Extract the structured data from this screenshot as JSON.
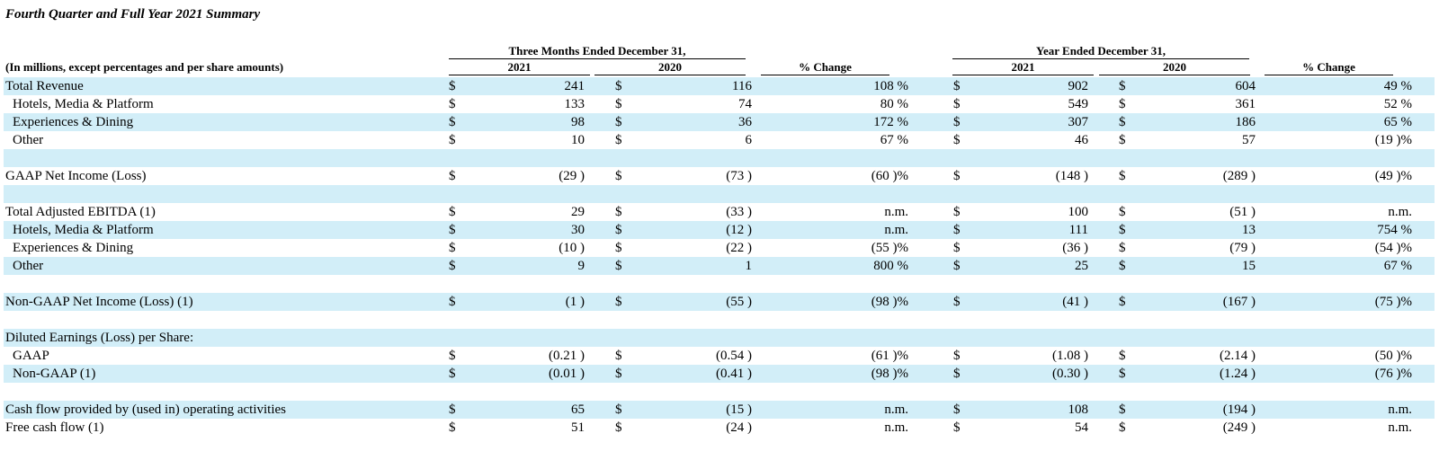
{
  "title": "Fourth Quarter and Full Year 2021 Summary",
  "subtitle": "(In millions, except percentages and per share amounts)",
  "header": {
    "three_months": "Three Months Ended December 31,",
    "year": "Year Ended December 31,",
    "col_2021": "2021",
    "col_2020": "2020",
    "pct_change": "% Change"
  },
  "rows": [
    {
      "label": "Total Revenue",
      "indent": false,
      "shaded": true,
      "cells": [
        "$",
        "241",
        "$",
        "116",
        "108 %",
        "$",
        "902",
        "$",
        "604",
        "49 %"
      ]
    },
    {
      "label": "Hotels, Media & Platform",
      "indent": true,
      "shaded": false,
      "cells": [
        "$",
        "133",
        "$",
        "74",
        "80 %",
        "$",
        "549",
        "$",
        "361",
        "52 %"
      ]
    },
    {
      "label": "Experiences & Dining",
      "indent": true,
      "shaded": true,
      "cells": [
        "$",
        "98",
        "$",
        "36",
        "172 %",
        "$",
        "307",
        "$",
        "186",
        "65 %"
      ]
    },
    {
      "label": "Other",
      "indent": true,
      "shaded": false,
      "cells": [
        "$",
        "10",
        "$",
        "6",
        "67 %",
        "$",
        "46",
        "$",
        "57",
        "(19 )%"
      ]
    },
    {
      "label": "",
      "indent": false,
      "shaded": true,
      "cells": [
        "",
        "",
        "",
        "",
        "",
        "",
        "",
        "",
        "",
        ""
      ]
    },
    {
      "label": "GAAP Net Income (Loss)",
      "indent": false,
      "shaded": false,
      "cells": [
        "$",
        "(29 )",
        "$",
        "(73 )",
        "(60 )%",
        "$",
        "(148 )",
        "$",
        "(289 )",
        "(49 )%"
      ]
    },
    {
      "label": "",
      "indent": false,
      "shaded": true,
      "cells": [
        "",
        "",
        "",
        "",
        "",
        "",
        "",
        "",
        "",
        ""
      ]
    },
    {
      "label": "Total Adjusted EBITDA (1)",
      "indent": false,
      "shaded": false,
      "cells": [
        "$",
        "29",
        "$",
        "(33 )",
        "n.m.",
        "$",
        "100",
        "$",
        "(51 )",
        "n.m."
      ]
    },
    {
      "label": "Hotels, Media & Platform",
      "indent": true,
      "shaded": true,
      "cells": [
        "$",
        "30",
        "$",
        "(12 )",
        "n.m.",
        "$",
        "111",
        "$",
        "13",
        "754 %"
      ]
    },
    {
      "label": "Experiences & Dining",
      "indent": true,
      "shaded": false,
      "cells": [
        "$",
        "(10 )",
        "$",
        "(22 )",
        "(55 )%",
        "$",
        "(36 )",
        "$",
        "(79 )",
        "(54 )%"
      ]
    },
    {
      "label": "Other",
      "indent": true,
      "shaded": true,
      "cells": [
        "$",
        "9",
        "$",
        "1",
        "800 %",
        "$",
        "25",
        "$",
        "15",
        "67 %"
      ]
    },
    {
      "label": "",
      "indent": false,
      "shaded": false,
      "cells": [
        "",
        "",
        "",
        "",
        "",
        "",
        "",
        "",
        "",
        ""
      ]
    },
    {
      "label": "Non-GAAP Net Income (Loss) (1)",
      "indent": false,
      "shaded": true,
      "cells": [
        "$",
        "(1 )",
        "$",
        "(55 )",
        "(98 )%",
        "$",
        "(41 )",
        "$",
        "(167 )",
        "(75 )%"
      ]
    },
    {
      "label": "",
      "indent": false,
      "shaded": false,
      "cells": [
        "",
        "",
        "",
        "",
        "",
        "",
        "",
        "",
        "",
        ""
      ]
    },
    {
      "label": "Diluted Earnings (Loss) per Share:",
      "indent": false,
      "shaded": true,
      "cells": [
        "",
        "",
        "",
        "",
        "",
        "",
        "",
        "",
        "",
        ""
      ]
    },
    {
      "label": "GAAP",
      "indent": true,
      "shaded": false,
      "cells": [
        "$",
        "(0.21 )",
        "$",
        "(0.54 )",
        "(61 )%",
        "$",
        "(1.08 )",
        "$",
        "(2.14 )",
        "(50 )%"
      ]
    },
    {
      "label": "Non-GAAP (1)",
      "indent": true,
      "shaded": true,
      "cells": [
        "$",
        "(0.01 )",
        "$",
        "(0.41 )",
        "(98 )%",
        "$",
        "(0.30 )",
        "$",
        "(1.24 )",
        "(76 )%"
      ]
    },
    {
      "label": "",
      "indent": false,
      "shaded": false,
      "cells": [
        "",
        "",
        "",
        "",
        "",
        "",
        "",
        "",
        "",
        ""
      ]
    },
    {
      "label": "Cash flow provided by (used in) operating activities",
      "indent": false,
      "shaded": true,
      "cells": [
        "$",
        "65",
        "$",
        "(15 )",
        "n.m.",
        "$",
        "108",
        "$",
        "(194 )",
        "n.m."
      ]
    },
    {
      "label": "Free cash flow (1)",
      "indent": false,
      "shaded": false,
      "cells": [
        "$",
        "51",
        "$",
        "(24 )",
        "n.m.",
        "$",
        "54",
        "$",
        "(249 )",
        "n.m."
      ]
    }
  ]
}
